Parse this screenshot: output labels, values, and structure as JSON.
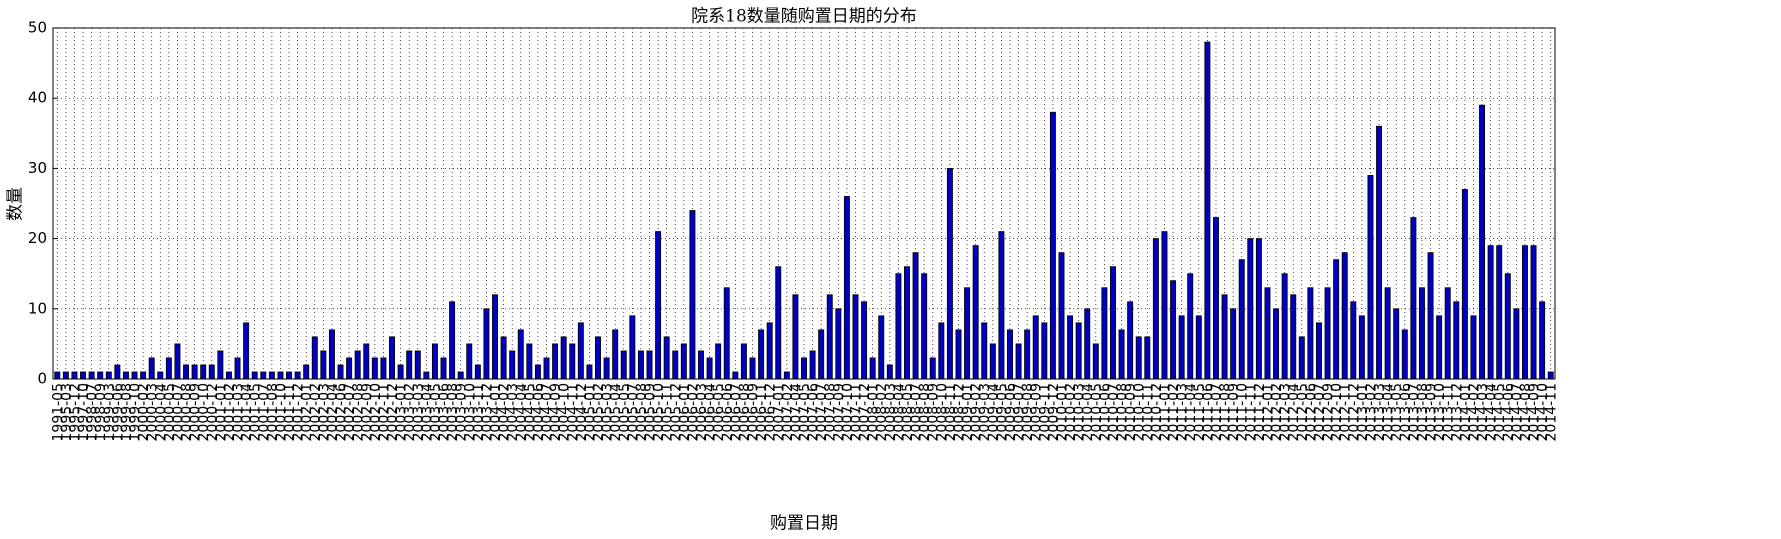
{
  "chart_data": {
    "type": "bar",
    "title": "院系18数量随购置日期的分布",
    "x_label": "购置日期",
    "y_label": "数量",
    "color": "#0000c0",
    "grid": true,
    "ylim": [
      0,
      50
    ],
    "yticks": [
      0,
      10,
      20,
      30,
      40,
      50
    ],
    "categories": [
      "1991-05",
      "1995-03",
      "1995-12",
      "1997-10",
      "1998-07",
      "1998-09",
      "1999-03",
      "1999-06",
      "1999-08",
      "1999-10",
      "2000-02",
      "2000-03",
      "2000-04",
      "2000-05",
      "2000-07",
      "2000-08",
      "2000-09",
      "2000-10",
      "2000-12",
      "2001-01",
      "2001-02",
      "2001-03",
      "2001-04",
      "2001-05",
      "2001-07",
      "2001-08",
      "2001-10",
      "2001-11",
      "2001-12",
      "2002-01",
      "2002-02",
      "2002-03",
      "2002-04",
      "2002-06",
      "2002-07",
      "2002-08",
      "2002-09",
      "2002-10",
      "2002-11",
      "2002-12",
      "2003-01",
      "2003-02",
      "2003-03",
      "2003-04",
      "2003-05",
      "2003-06",
      "2003-08",
      "2003-09",
      "2003-10",
      "2003-11",
      "2003-12",
      "2004-01",
      "2004-02",
      "2004-03",
      "2004-04",
      "2004-05",
      "2004-06",
      "2004-07",
      "2004-09",
      "2004-10",
      "2004-11",
      "2004-12",
      "2005-01",
      "2005-02",
      "2005-03",
      "2005-04",
      "2005-05",
      "2005-07",
      "2005-08",
      "2005-09",
      "2005-10",
      "2005-11",
      "2005-12",
      "2006-01",
      "2006-02",
      "2006-03",
      "2006-04",
      "2006-05",
      "2006-06",
      "2006-07",
      "2006-08",
      "2006-09",
      "2006-11",
      "2006-12",
      "2007-01",
      "2007-02",
      "2007-04",
      "2007-05",
      "2007-06",
      "2007-07",
      "2007-08",
      "2007-09",
      "2007-10",
      "2007-11",
      "2007-12",
      "2008-01",
      "2008-02",
      "2008-03",
      "2008-04",
      "2008-05",
      "2008-07",
      "2008-08",
      "2008-09",
      "2008-10",
      "2008-11",
      "2008-12",
      "2009-01",
      "2009-02",
      "2009-03",
      "2009-04",
      "2009-05",
      "2009-06",
      "2009-07",
      "2009-08",
      "2009-09",
      "2009-11",
      "2009-12",
      "2010-01",
      "2010-02",
      "2010-03",
      "2010-04",
      "2010-05",
      "2010-06",
      "2010-07",
      "2010-08",
      "2010-09",
      "2010-10",
      "2010-11",
      "2010-12",
      "2011-01",
      "2011-02",
      "2011-03",
      "2011-04",
      "2011-05",
      "2011-06",
      "2011-07",
      "2011-08",
      "2011-09",
      "2011-10",
      "2011-11",
      "2011-12",
      "2012-01",
      "2012-02",
      "2012-03",
      "2012-04",
      "2012-05",
      "2012-06",
      "2012-07",
      "2012-09",
      "2012-10",
      "2012-11",
      "2012-12",
      "2013-01",
      "2013-02",
      "2013-03",
      "2013-04",
      "2013-05",
      "2013-06",
      "2013-07",
      "2013-08",
      "2013-09",
      "2013-10",
      "2013-11",
      "2013-12",
      "2014-01",
      "2014-02",
      "2014-03",
      "2014-04",
      "2014-05",
      "2014-06",
      "2014-07",
      "2014-08",
      "2014-09",
      "2014-10",
      "2014-11"
    ],
    "values": [
      1,
      1,
      1,
      1,
      1,
      1,
      1,
      2,
      1,
      1,
      1,
      3,
      1,
      3,
      5,
      2,
      2,
      2,
      2,
      4,
      1,
      3,
      8,
      1,
      1,
      1,
      1,
      1,
      1,
      2,
      6,
      4,
      7,
      2,
      3,
      4,
      5,
      3,
      3,
      6,
      2,
      4,
      4,
      1,
      5,
      3,
      11,
      1,
      5,
      2,
      10,
      12,
      6,
      4,
      7,
      5,
      2,
      3,
      5,
      6,
      5,
      8,
      2,
      6,
      3,
      7,
      4,
      9,
      4,
      4,
      21,
      6,
      4,
      5,
      24,
      4,
      3,
      5,
      13,
      1,
      5,
      3,
      7,
      8,
      16,
      1,
      12,
      3,
      4,
      7,
      12,
      10,
      26,
      12,
      11,
      3,
      9,
      2,
      15,
      16,
      18,
      15,
      3,
      8,
      30,
      7,
      13,
      19,
      8,
      5,
      21,
      7,
      5,
      7,
      9,
      8,
      38,
      18,
      9,
      8,
      10,
      5,
      13,
      16,
      7,
      11,
      6,
      6,
      20,
      21,
      14,
      9,
      15,
      9,
      48,
      23,
      12,
      10,
      17,
      20,
      20,
      13,
      10,
      15,
      12,
      6,
      13,
      8,
      13,
      17,
      18,
      11,
      9,
      29,
      36,
      13,
      10,
      7,
      23,
      13,
      18,
      9,
      13,
      11,
      27,
      9,
      39,
      19,
      19,
      15,
      10,
      19,
      19,
      11,
      1
    ]
  }
}
